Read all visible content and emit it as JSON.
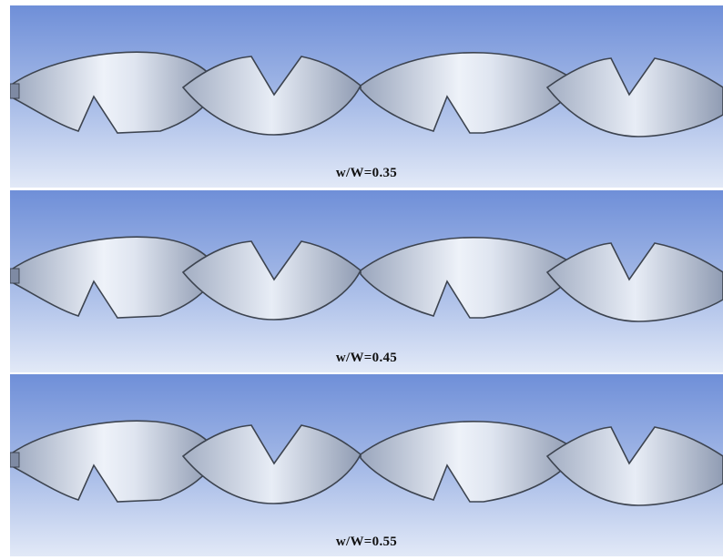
{
  "panels": [
    {
      "caption": "w/W=0.35"
    },
    {
      "caption": "w/W=0.45"
    },
    {
      "caption": "w/W=0.55"
    }
  ],
  "colors": {
    "bg_top": "#6f8fd8",
    "bg_bottom": "#dde6f6",
    "surface_light": "#e6ebf5",
    "surface_mid": "#b9c4d8",
    "surface_dark": "#8e9bb4",
    "edge": "#3d4450"
  }
}
